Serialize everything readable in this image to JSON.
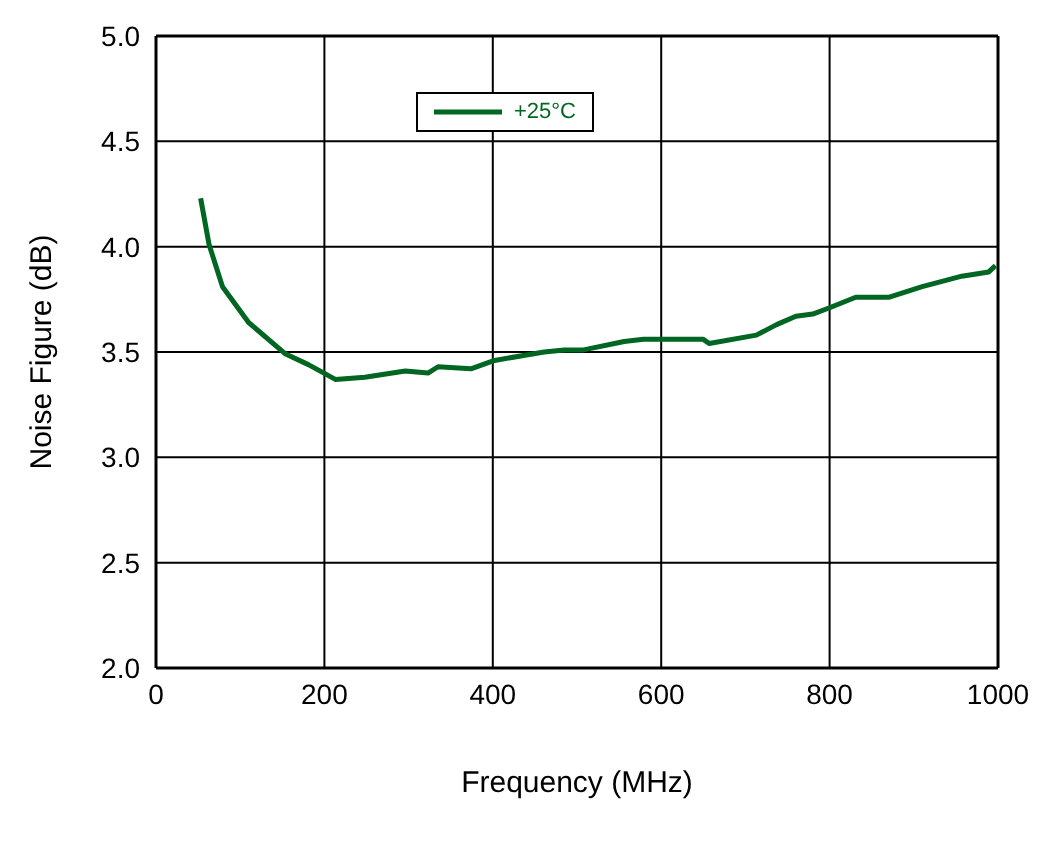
{
  "chart_data": {
    "type": "line",
    "xlabel": "Frequency (MHz)",
    "ylabel": "Noise Figure (dB)",
    "x": [
      53,
      63,
      79,
      110,
      154,
      181,
      213,
      248,
      296,
      323,
      335,
      374,
      402,
      461,
      485,
      508,
      556,
      579,
      650,
      657,
      713,
      737,
      760,
      780,
      800,
      831,
      871,
      910,
      957,
      989,
      997
    ],
    "series": [
      {
        "name": "+25°C",
        "color": "#006622",
        "values": [
          4.23,
          4.01,
          3.81,
          3.64,
          3.49,
          3.44,
          3.37,
          3.38,
          3.41,
          3.4,
          3.43,
          3.42,
          3.46,
          3.5,
          3.51,
          3.51,
          3.55,
          3.56,
          3.56,
          3.54,
          3.58,
          3.63,
          3.67,
          3.68,
          3.71,
          3.76,
          3.76,
          3.81,
          3.86,
          3.88,
          3.91
        ]
      }
    ],
    "xlim": [
      0,
      1000
    ],
    "xticks": [
      0,
      200,
      400,
      600,
      800,
      1000
    ],
    "ylim": [
      2,
      5
    ],
    "yticks": [
      {
        "value": 2,
        "label": "2.0"
      },
      {
        "value": 2.5,
        "label": "2.5"
      },
      {
        "value": 3,
        "label": "3.0"
      },
      {
        "value": 3.5,
        "label": "3.5"
      },
      {
        "value": 4,
        "label": "4.0"
      },
      {
        "value": 4.5,
        "label": "4.5"
      },
      {
        "value": 5,
        "label": "5.0"
      }
    ],
    "grid": true,
    "legend": "top",
    "marker": "none",
    "line_style": "solid"
  }
}
